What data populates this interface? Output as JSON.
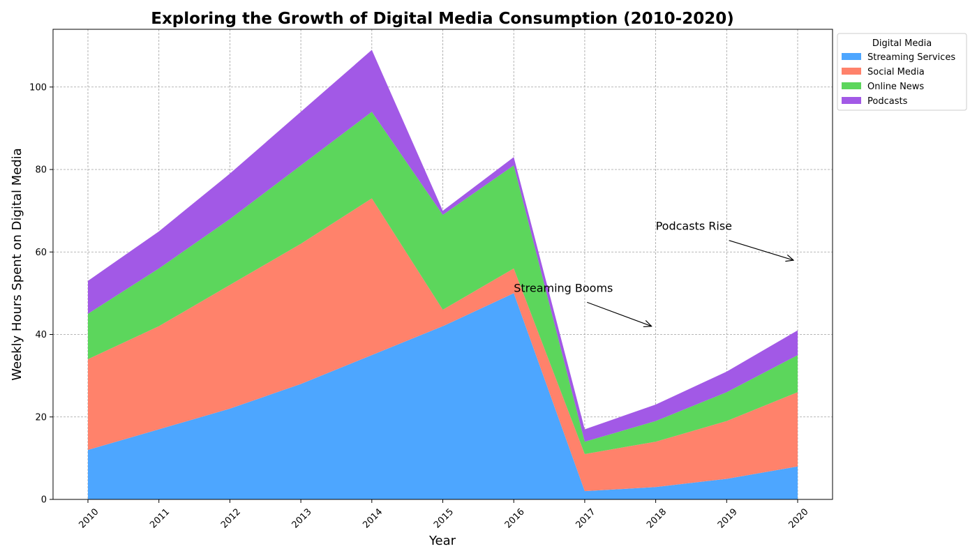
{
  "chart_data": {
    "type": "area",
    "stacked": true,
    "title": "Exploring the Growth of Digital Media Consumption (2010-2020)",
    "xlabel": "Year",
    "ylabel": "Weekly Hours Spent on Digital Media",
    "x": [
      "2010",
      "2011",
      "2012",
      "2013",
      "2014",
      "2015",
      "2016",
      "2017",
      "2018",
      "2019",
      "2020"
    ],
    "ylim": [
      0,
      114
    ],
    "yticks": [
      0,
      20,
      40,
      60,
      80,
      100
    ],
    "grid": true,
    "legend": {
      "title": "Digital Media",
      "placement": "outside-top-right"
    },
    "series": [
      {
        "name": "Streaming Services",
        "color": "#4da6ff",
        "values": [
          12,
          17,
          22,
          28,
          35,
          42,
          50,
          2,
          3,
          5,
          8
        ]
      },
      {
        "name": "Social Media",
        "color": "#ff826b",
        "values": [
          22,
          25,
          30,
          34,
          38,
          4,
          6,
          9,
          11,
          14,
          18
        ]
      },
      {
        "name": "Online News",
        "color": "#5cd65c",
        "values": [
          11,
          14,
          16,
          19,
          21,
          23,
          25,
          3,
          5,
          7,
          9
        ]
      },
      {
        "name": "Podcasts",
        "color": "#a259e6",
        "values": [
          8,
          9,
          11,
          13,
          15,
          1,
          2,
          3,
          4,
          5,
          6
        ]
      }
    ],
    "annotations": [
      {
        "text": "Streaming Booms",
        "text_x": "2016",
        "text_y": 50,
        "arrow_x": "2018",
        "arrow_y": 42
      },
      {
        "text": "Podcasts Rise",
        "text_x": "2018",
        "text_y": 65,
        "arrow_x": "2020",
        "arrow_y": 58
      }
    ]
  }
}
